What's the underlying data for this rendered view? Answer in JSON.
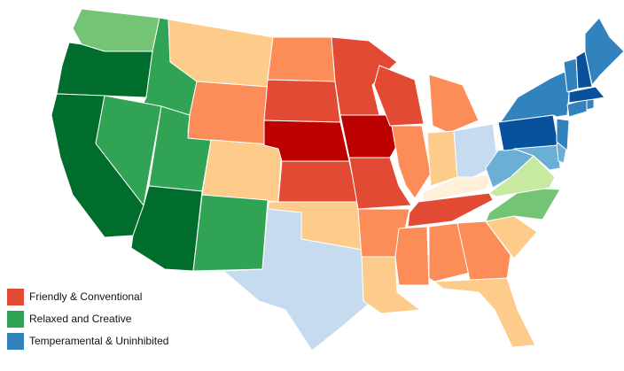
{
  "legend": {
    "items": [
      {
        "label": "Friendly & Conventional",
        "color": "#e34a33"
      },
      {
        "label": "Relaxed and Creative",
        "color": "#31a354"
      },
      {
        "label": "Temperamental & Uninhibited",
        "color": "#3182bd"
      }
    ]
  },
  "palette": {
    "red_dark": "#bd0000",
    "red": "#e34a33",
    "orange": "#fc8d59",
    "peach": "#fdcc8a",
    "cream": "#fef0d9",
    "green_dark": "#006d2c",
    "green": "#31a354",
    "green_light": "#74c476",
    "green_pale": "#c7e9a0",
    "blue_dark": "#08519c",
    "blue": "#3182bd",
    "blue_light": "#6baed6",
    "blue_pale": "#c6dbef"
  },
  "states": [
    {
      "name": "WA",
      "color": "green_light"
    },
    {
      "name": "OR",
      "color": "green_dark"
    },
    {
      "name": "CA",
      "color": "green_dark"
    },
    {
      "name": "ID",
      "color": "green"
    },
    {
      "name": "NV",
      "color": "green"
    },
    {
      "name": "UT",
      "color": "green"
    },
    {
      "name": "AZ",
      "color": "green_dark"
    },
    {
      "name": "MT",
      "color": "peach"
    },
    {
      "name": "WY",
      "color": "orange"
    },
    {
      "name": "CO",
      "color": "peach"
    },
    {
      "name": "NM",
      "color": "green"
    },
    {
      "name": "ND",
      "color": "orange"
    },
    {
      "name": "SD",
      "color": "red"
    },
    {
      "name": "NE",
      "color": "red_dark"
    },
    {
      "name": "KS",
      "color": "red"
    },
    {
      "name": "OK",
      "color": "peach"
    },
    {
      "name": "TX",
      "color": "blue_pale"
    },
    {
      "name": "MN",
      "color": "red"
    },
    {
      "name": "IA",
      "color": "red_dark"
    },
    {
      "name": "MO",
      "color": "red"
    },
    {
      "name": "AR",
      "color": "orange"
    },
    {
      "name": "LA",
      "color": "peach"
    },
    {
      "name": "WI",
      "color": "red"
    },
    {
      "name": "IL",
      "color": "orange"
    },
    {
      "name": "MI",
      "color": "orange"
    },
    {
      "name": "IN",
      "color": "peach"
    },
    {
      "name": "OH",
      "color": "blue_pale"
    },
    {
      "name": "KY",
      "color": "cream"
    },
    {
      "name": "TN",
      "color": "red"
    },
    {
      "name": "MS",
      "color": "orange"
    },
    {
      "name": "AL",
      "color": "orange"
    },
    {
      "name": "GA",
      "color": "orange"
    },
    {
      "name": "FL",
      "color": "peach"
    },
    {
      "name": "SC",
      "color": "peach"
    },
    {
      "name": "NC",
      "color": "green_light"
    },
    {
      "name": "VA",
      "color": "green_pale"
    },
    {
      "name": "WV",
      "color": "blue_light"
    },
    {
      "name": "PA",
      "color": "blue_dark"
    },
    {
      "name": "NY",
      "color": "blue"
    },
    {
      "name": "MD",
      "color": "blue_light"
    },
    {
      "name": "DE",
      "color": "blue_light"
    },
    {
      "name": "NJ",
      "color": "blue"
    },
    {
      "name": "CT",
      "color": "blue"
    },
    {
      "name": "RI",
      "color": "blue"
    },
    {
      "name": "MA",
      "color": "blue_dark"
    },
    {
      "name": "VT",
      "color": "blue"
    },
    {
      "name": "NH",
      "color": "blue_dark"
    },
    {
      "name": "ME",
      "color": "blue"
    }
  ]
}
